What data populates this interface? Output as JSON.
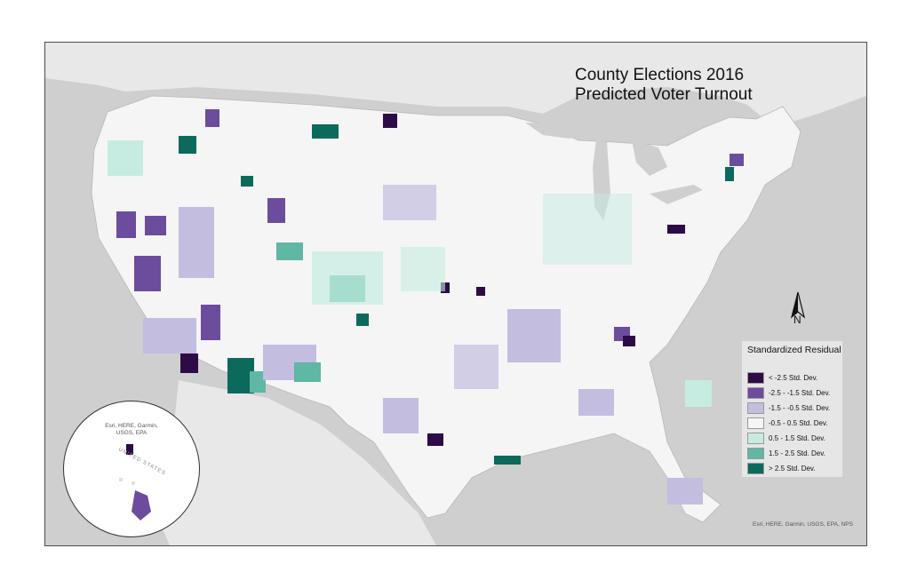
{
  "map": {
    "title_line1": "County Elections 2016",
    "title_line2": "Predicted Voter Turnout",
    "north_label": "N",
    "attribution": "Esri, HERE, Garmin, USGS, EPA, NPS",
    "inset_attribution": "Esri, HERE, Garmin, USGS, EPA",
    "inset_region_label": "UNITED STATES"
  },
  "legend": {
    "title": "Standardized Residual",
    "items": [
      {
        "label": "< -2.5 Std. Dev.",
        "color": "#2d0b46"
      },
      {
        "label": "-2.5 - -1.5 Std. Dev.",
        "color": "#6c4c9c"
      },
      {
        "label": "-1.5 - -0.5 Std. Dev.",
        "color": "#c3bde0"
      },
      {
        "label": "-0.5 - 0.5 Std. Dev.",
        "color": "#f5f5f5"
      },
      {
        "label": "0.5 - 1.5 Std. Dev.",
        "color": "#c6ece1"
      },
      {
        "label": "1.5 - 2.5 Std. Dev.",
        "color": "#5fb7a4"
      },
      {
        "label": "> 2.5 Std. Dev.",
        "color": "#0b6a5c"
      }
    ]
  },
  "colors": {
    "water": "#cfcfcf",
    "land_context": "#e8e8e8",
    "usa_base": "#f5f5f5"
  }
}
